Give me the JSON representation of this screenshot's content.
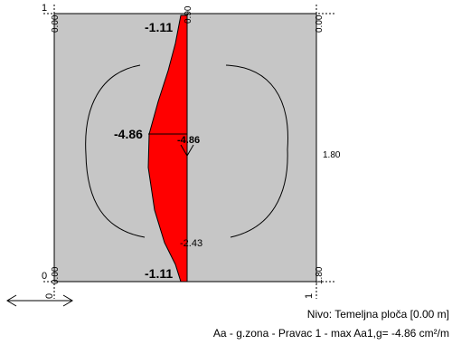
{
  "colors": {
    "plate": "#c6c6c6",
    "diagram_fill": "#ff0000",
    "outline": "#000000",
    "background": "#ffffff"
  },
  "axis_labels": {
    "top_left_index": "1",
    "bottom_left_index": "0",
    "top_right_index": "1",
    "bottom_right_index": "1",
    "top_left_corner": "0.00",
    "bottom_left_corner": "0.00",
    "top_right_corner": "0.00",
    "bottom_right_corner": "1.80",
    "top_x": "0.90",
    "right_y": "1.80",
    "bottom_left_x": "0"
  },
  "diagram_labels": {
    "top_value": "-1.11",
    "max_value": "-4.86",
    "center_value": "-4.86",
    "lower_value": "-2.43",
    "bottom_value": "-1.11"
  },
  "diagram_values": [
    -1.11,
    -4.86,
    -1.11
  ],
  "caption": {
    "line1": "Nivo: Temeljna ploča [0.00 m]",
    "line2": "Aa - g.zona - Pravac 1 - max Aa1,g= -4.86 cm²/m"
  },
  "icons": {
    "direction": "double-arrow-horizontal-icon"
  }
}
